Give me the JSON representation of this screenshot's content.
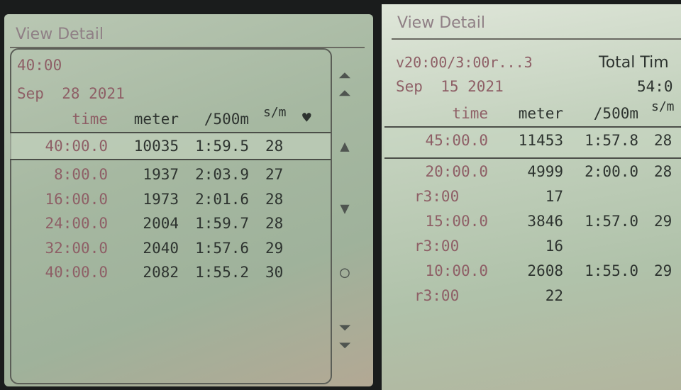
{
  "left": {
    "title": "View Detail",
    "workout": "40:00",
    "date": "Sep  28 2021",
    "columns": {
      "time": "time",
      "meter": "meter",
      "pace": "/500m",
      "spm": "s/m",
      "hr_icon": "heart-icon"
    },
    "summary": {
      "time": "40:00.0",
      "meter": "10035",
      "pace": "1:59.5",
      "spm": "28"
    },
    "rows": [
      {
        "time": "8:00.0",
        "meter": "1937",
        "pace": "2:03.9",
        "spm": "27"
      },
      {
        "time": "16:00.0",
        "meter": "1973",
        "pace": "2:01.6",
        "spm": "28"
      },
      {
        "time": "24:00.0",
        "meter": "2004",
        "pace": "1:59.7",
        "spm": "28"
      },
      {
        "time": "32:00.0",
        "meter": "2040",
        "pace": "1:57.6",
        "spm": "29"
      },
      {
        "time": "40:00.0",
        "meter": "2082",
        "pace": "1:55.2",
        "spm": "30"
      }
    ],
    "scroll_icons": [
      "double-up-icon",
      "up-icon",
      "down-icon",
      "circle-icon",
      "double-down-icon"
    ]
  },
  "right": {
    "title": "View Detail",
    "workout": "v20:00/3:00r...3",
    "date": "Sep  15 2021",
    "total_label": "Total Tim",
    "total_value": "54:0",
    "columns": {
      "time": "time",
      "meter": "meter",
      "pace": "/500m",
      "spm": "s/m"
    },
    "summary": {
      "time": "45:00.0",
      "meter": "11453",
      "pace": "1:57.8",
      "spm": "28"
    },
    "rows": [
      {
        "time": "20:00.0",
        "meter": "4999",
        "pace": "2:00.0",
        "spm": "28"
      },
      {
        "rest": "r3:00",
        "meter": "17"
      },
      {
        "time": "15:00.0",
        "meter": "3846",
        "pace": "1:57.0",
        "spm": "29"
      },
      {
        "rest": "r3:00",
        "meter": "16"
      },
      {
        "time": "10:00.0",
        "meter": "2608",
        "pace": "1:55.0",
        "spm": "29"
      },
      {
        "rest": "r3:00",
        "meter": "22"
      }
    ]
  }
}
